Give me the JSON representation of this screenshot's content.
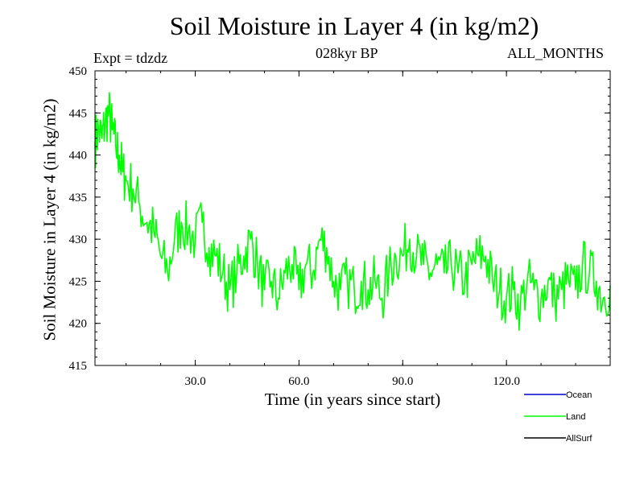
{
  "chart_data": {
    "type": "line",
    "title": "Soil Moisture in Layer 4 (in kg/m2)",
    "subtitle_left": "Expt = tdzdz",
    "subtitle_center": "028kyr BP",
    "subtitle_right": "ALL_MONTHS",
    "xlabel": "Time (in years since start)",
    "ylabel": "Soil Moisture in Layer 4 (in kg/m2)",
    "xlim": [
      1,
      150
    ],
    "ylim": [
      415,
      450
    ],
    "xticks": [
      30,
      60,
      90,
      120
    ],
    "xtick_labels": [
      "30.0",
      "60.0",
      "90.0",
      "120.0"
    ],
    "yticks": [
      415,
      420,
      425,
      430,
      435,
      440,
      445,
      450
    ],
    "ytick_labels": [
      "415",
      "420",
      "425",
      "430",
      "435",
      "440",
      "445",
      "450"
    ],
    "legend": [
      {
        "name": "Ocean",
        "color": "#0000cc"
      },
      {
        "name": "Land",
        "color": "#00ff00"
      },
      {
        "name": "AllSurf",
        "color": "#000000"
      }
    ],
    "series": [
      {
        "name": "Land",
        "color": "#00ff00",
        "x": [
          1,
          2,
          3,
          4,
          5,
          6,
          7,
          8,
          9,
          10,
          12,
          14,
          16,
          18,
          20,
          22,
          24,
          26,
          28,
          30,
          32,
          34,
          36,
          38,
          40,
          42,
          44,
          46,
          48,
          50,
          52,
          54,
          56,
          58,
          60,
          62,
          64,
          66,
          68,
          70,
          72,
          74,
          76,
          78,
          80,
          82,
          84,
          86,
          88,
          90,
          92,
          94,
          96,
          98,
          100,
          102,
          104,
          106,
          108,
          110,
          112,
          114,
          116,
          118,
          120,
          122,
          124,
          126,
          128,
          130,
          132,
          134,
          136,
          138,
          140,
          142,
          144,
          146,
          148,
          150
        ],
        "y": [
          441.5,
          443,
          442,
          444,
          445,
          443,
          441,
          440,
          438,
          437,
          436,
          434,
          432,
          431,
          428,
          426,
          430,
          432,
          431,
          430,
          432,
          429,
          428,
          426,
          424,
          426,
          428,
          430,
          427,
          424,
          425,
          423,
          426,
          427,
          424,
          427,
          426,
          430,
          429,
          425,
          424,
          425,
          424,
          425,
          424,
          425,
          423,
          426,
          428,
          428,
          430,
          428,
          427,
          426,
          427,
          426,
          427,
          426,
          425,
          427,
          428,
          428,
          425,
          424,
          423,
          424,
          422,
          425,
          424,
          423,
          425,
          423,
          424,
          425,
          424,
          427,
          426,
          425,
          423,
          424.5
        ]
      }
    ]
  }
}
